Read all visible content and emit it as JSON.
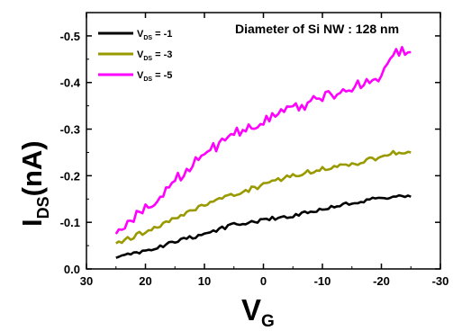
{
  "chart_data": {
    "type": "line",
    "annotation": "Diameter of Si NW : 128 nm",
    "xlabel": {
      "main": "V",
      "sub": "G"
    },
    "ylabel": {
      "main": "I",
      "sub": "DS",
      "suffix": "(nA)"
    },
    "xlim": [
      30,
      -30
    ],
    "ylim": [
      0.0,
      -0.55
    ],
    "xticks": [
      30,
      20,
      10,
      0,
      -10,
      -20,
      -30
    ],
    "xtick_labels": [
      "30",
      "20",
      "10",
      "0",
      "-10",
      "-20",
      "-30"
    ],
    "yticks": [
      0.0,
      -0.1,
      -0.2,
      -0.3,
      -0.4,
      -0.5
    ],
    "ytick_labels": [
      "0.0",
      "-0.1",
      "-0.2",
      "-0.3",
      "-0.4",
      "-0.5"
    ],
    "grid": false,
    "legend_placement": "top-left",
    "x": [
      25,
      20,
      15,
      10,
      5,
      0,
      -5,
      -10,
      -15,
      -20,
      -22,
      -25
    ],
    "series": [
      {
        "label": {
          "prefix": "V",
          "sub": "DS",
          "suffix": " = -1"
        },
        "color": "#000000",
        "values": [
          -0.024,
          -0.038,
          -0.058,
          -0.075,
          -0.095,
          -0.105,
          -0.115,
          -0.128,
          -0.142,
          -0.152,
          -0.155,
          -0.155
        ]
      },
      {
        "label": {
          "prefix": "V",
          "sub": "DS",
          "suffix": " = -3"
        },
        "color": "#999900",
        "values": [
          -0.055,
          -0.08,
          -0.11,
          -0.14,
          -0.16,
          -0.18,
          -0.2,
          -0.215,
          -0.225,
          -0.24,
          -0.25,
          -0.25
        ]
      },
      {
        "label": {
          "prefix": "V",
          "sub": "DS",
          "suffix": " = -5"
        },
        "color": "#ff00ff",
        "values": [
          -0.075,
          -0.13,
          -0.19,
          -0.245,
          -0.29,
          -0.32,
          -0.345,
          -0.365,
          -0.39,
          -0.41,
          -0.47,
          -0.465
        ]
      }
    ]
  }
}
